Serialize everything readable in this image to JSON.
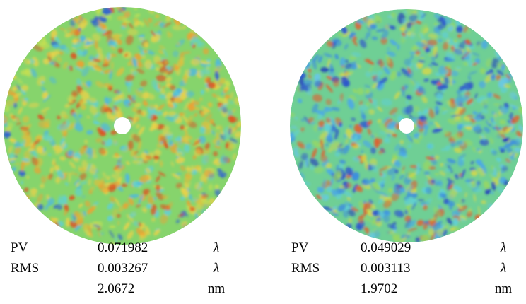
{
  "panels": [
    {
      "rows": [
        {
          "label": "PV",
          "value": "0.071982",
          "unit": "λ"
        },
        {
          "label": "RMS",
          "value": "0.003267",
          "unit": "λ"
        },
        {
          "value": "2.0672",
          "unit": "nm"
        }
      ]
    },
    {
      "rows": [
        {
          "label": "PV",
          "value": "0.049029",
          "unit": "λ"
        },
        {
          "label": "RMS",
          "value": "0.003113",
          "unit": "λ"
        },
        {
          "value": "1.9702",
          "unit": "nm"
        }
      ]
    }
  ]
}
